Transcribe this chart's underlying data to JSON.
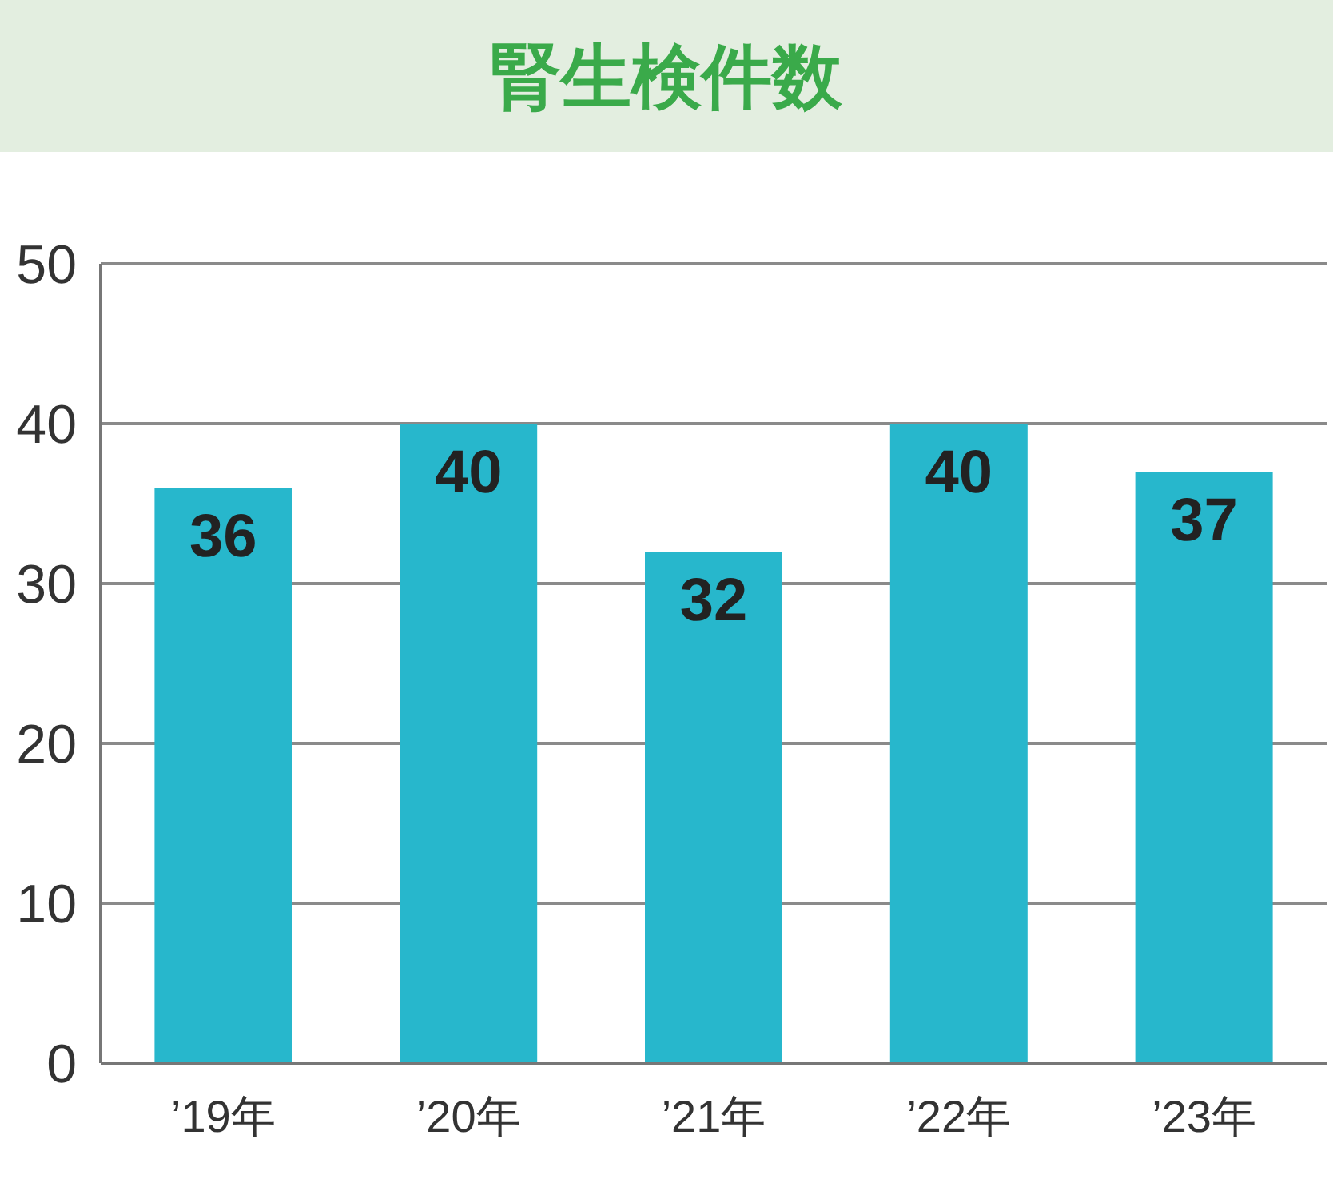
{
  "chart_data": {
    "type": "bar",
    "title": "腎生検件数",
    "categories": [
      "’19年",
      "’20年",
      "’21年",
      "’22年",
      "’23年"
    ],
    "values": [
      36,
      40,
      32,
      40,
      37
    ],
    "color": "#27b7cc",
    "ylim": [
      0,
      50
    ],
    "yticks": [
      0,
      10,
      20,
      30,
      40,
      50
    ],
    "grid": "y",
    "data_labels": true
  }
}
